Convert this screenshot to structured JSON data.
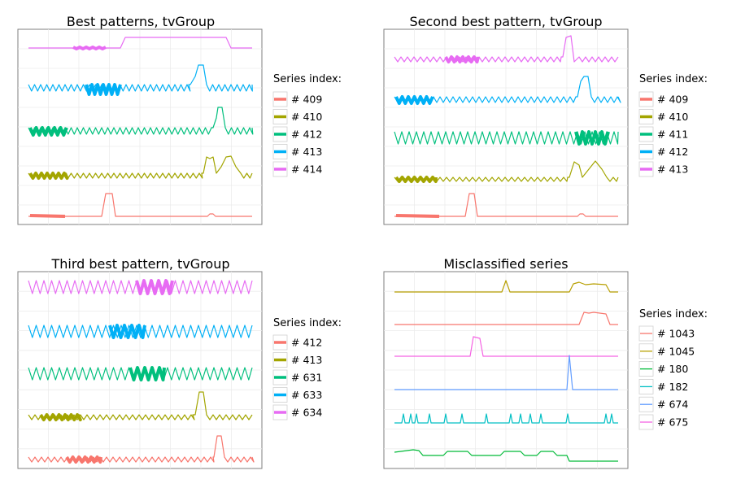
{
  "colors": {
    "c409": "#f8766d",
    "c410": "#a3a500",
    "c411": "#00bf7d",
    "c412": "#00b0f6",
    "c413": "#e76bf3",
    "m1043": "#f8766d",
    "m1045": "#b79f00",
    "m180": "#00ba38",
    "m182": "#00bfc4",
    "m674": "#619cff",
    "m675": "#f564e3"
  },
  "chart_data": [
    {
      "type": "line",
      "title": "Best patterns, tvGroup",
      "legend_title": "Series index:",
      "legend_position": "right",
      "grid": true,
      "series": [
        {
          "name": "# 409",
          "color": "#f8766d"
        },
        {
          "name": "# 410",
          "color": "#a3a500"
        },
        {
          "name": "# 412",
          "color": "#00bf7d"
        },
        {
          "name": "# 413",
          "color": "#00b0f6"
        },
        {
          "name": "# 414",
          "color": "#e76bf3"
        }
      ]
    },
    {
      "type": "line",
      "title": "Second best pattern, tvGroup",
      "legend_title": "Series index:",
      "legend_position": "right",
      "grid": true,
      "series": [
        {
          "name": "# 409",
          "color": "#f8766d"
        },
        {
          "name": "# 410",
          "color": "#a3a500"
        },
        {
          "name": "# 411",
          "color": "#00bf7d"
        },
        {
          "name": "# 412",
          "color": "#00b0f6"
        },
        {
          "name": "# 413",
          "color": "#e76bf3"
        }
      ]
    },
    {
      "type": "line",
      "title": "Third best pattern, tvGroup",
      "legend_title": "Series index:",
      "legend_position": "right",
      "grid": true,
      "series": [
        {
          "name": "# 412",
          "color": "#f8766d"
        },
        {
          "name": "# 413",
          "color": "#a3a500"
        },
        {
          "name": "# 631",
          "color": "#00bf7d"
        },
        {
          "name": "# 633",
          "color": "#00b0f6"
        },
        {
          "name": "# 634",
          "color": "#e76bf3"
        }
      ]
    },
    {
      "type": "line",
      "title": "Misclassified series",
      "legend_title": "Series index:",
      "legend_position": "right",
      "grid": true,
      "series": [
        {
          "name": "# 1043",
          "color": "#f8766d"
        },
        {
          "name": "# 1045",
          "color": "#b79f00"
        },
        {
          "name": "# 180",
          "color": "#00ba38"
        },
        {
          "name": "# 182",
          "color": "#00bfc4"
        },
        {
          "name": "# 674",
          "color": "#619cff"
        },
        {
          "name": "# 675",
          "color": "#f564e3"
        }
      ]
    }
  ]
}
